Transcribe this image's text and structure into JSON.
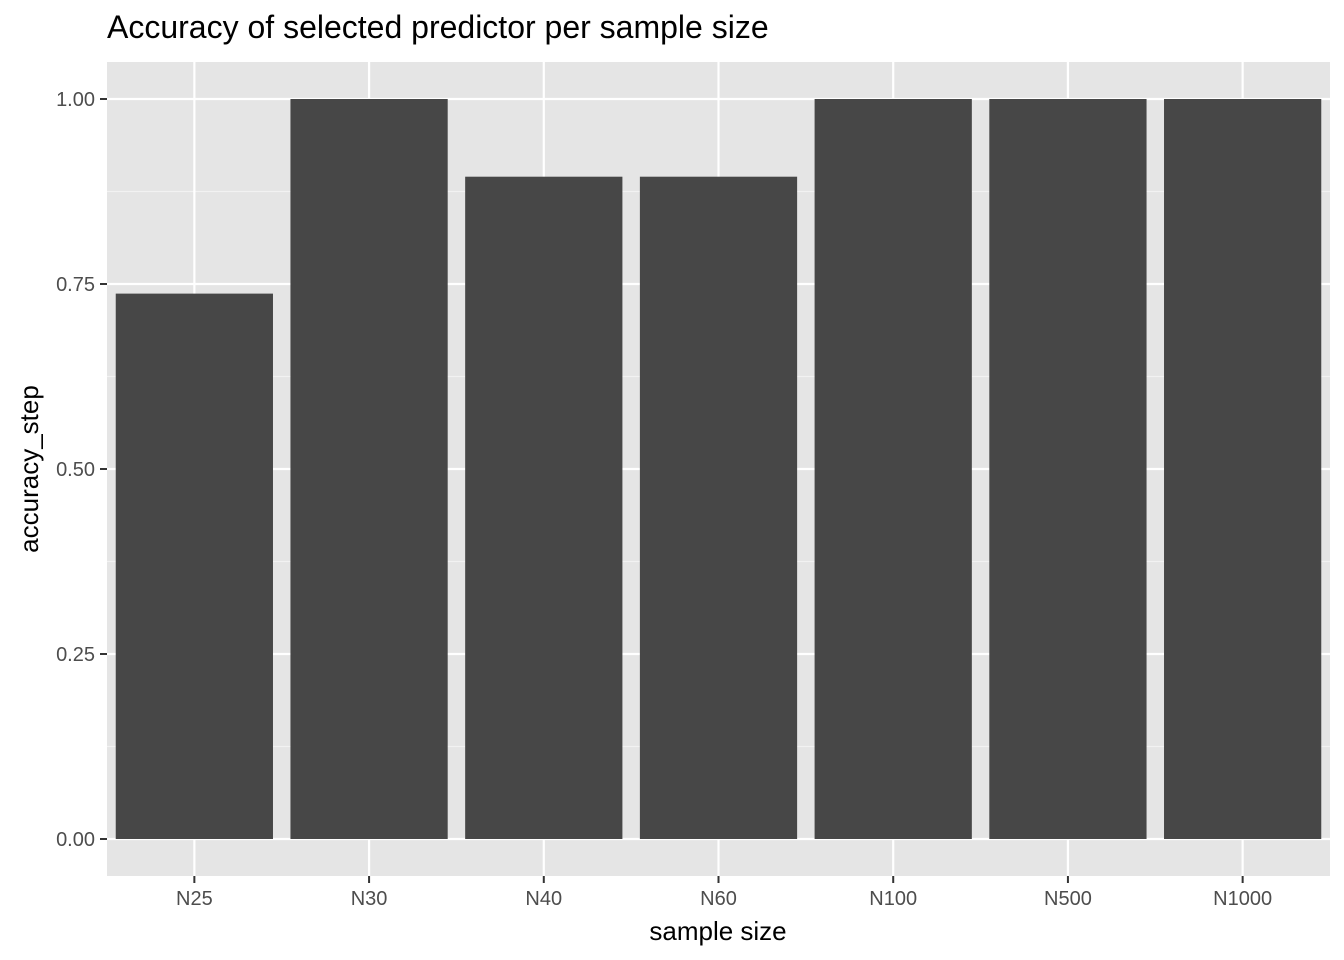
{
  "chart_data": {
    "type": "bar",
    "title": "Accuracy of selected predictor per sample size",
    "xlabel": "sample size",
    "ylabel": "accuracy_step",
    "categories": [
      "N25",
      "N30",
      "N40",
      "N60",
      "N100",
      "N500",
      "N1000"
    ],
    "values": [
      0.737,
      1.0,
      0.895,
      0.895,
      1.0,
      1.0,
      1.0
    ],
    "ylim": [
      -0.05,
      1.05
    ],
    "yticks": [
      0.0,
      0.25,
      0.5,
      0.75,
      1.0
    ],
    "ytick_labels": [
      "0.00",
      "0.25",
      "0.50",
      "0.75",
      "1.00"
    ],
    "grid": true,
    "legend": "none",
    "colors": {
      "panel_background": "#e5e5e5",
      "grid_major": "#ffffff",
      "grid_minor": "#f2f2f2",
      "bar_fill": "#474747",
      "tick_mark": "#333333",
      "tick_text": "#4d4d4d"
    }
  }
}
